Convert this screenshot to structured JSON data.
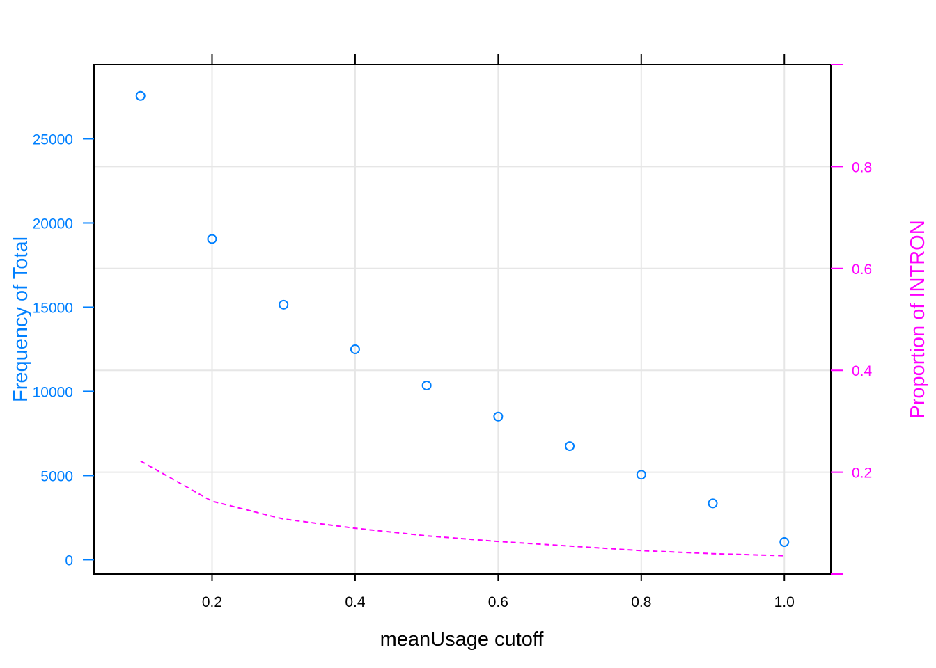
{
  "chart_data": {
    "type": "scatter",
    "xlabel": "meanUsage cutoff",
    "ylabel_left": "Frequency of Total",
    "ylabel_right": "Proportion of INTRON",
    "xlim": [
      0.035,
      1.065
    ],
    "ylim_left": [
      -850,
      29400
    ],
    "ylim_right": [
      0.0,
      1.0
    ],
    "x_ticks": [
      "0.2",
      "0.4",
      "0.6",
      "0.8",
      "1.0"
    ],
    "y_left_ticks": [
      "0",
      "5000",
      "10000",
      "15000",
      "20000",
      "25000"
    ],
    "y_right_ticks": [
      "0.2",
      "0.4",
      "0.6",
      "0.8"
    ],
    "grid": true,
    "series": [
      {
        "name": "Frequency of Total",
        "axis": "left",
        "style": "open-circles",
        "color": "#0080ff",
        "x": [
          0.1,
          0.2,
          0.3,
          0.4,
          0.5,
          0.6,
          0.7,
          0.8,
          0.9,
          1.0
        ],
        "y": [
          27550,
          19050,
          15150,
          12500,
          10350,
          8500,
          6750,
          5050,
          3350,
          1050
        ]
      },
      {
        "name": "Proportion of INTRON",
        "axis": "right",
        "style": "dashed-line",
        "color": "#ff00ff",
        "x": [
          0.1,
          0.2,
          0.3,
          0.4,
          0.5,
          0.6,
          0.7,
          0.8,
          0.9,
          1.0
        ],
        "y": [
          0.222,
          0.143,
          0.108,
          0.09,
          0.075,
          0.064,
          0.055,
          0.046,
          0.04,
          0.036
        ]
      }
    ],
    "colors": {
      "left_axis": "#0080ff",
      "right_axis": "#ff00ff",
      "x_axis": "#000000",
      "grid": "#e6e6e6"
    }
  }
}
